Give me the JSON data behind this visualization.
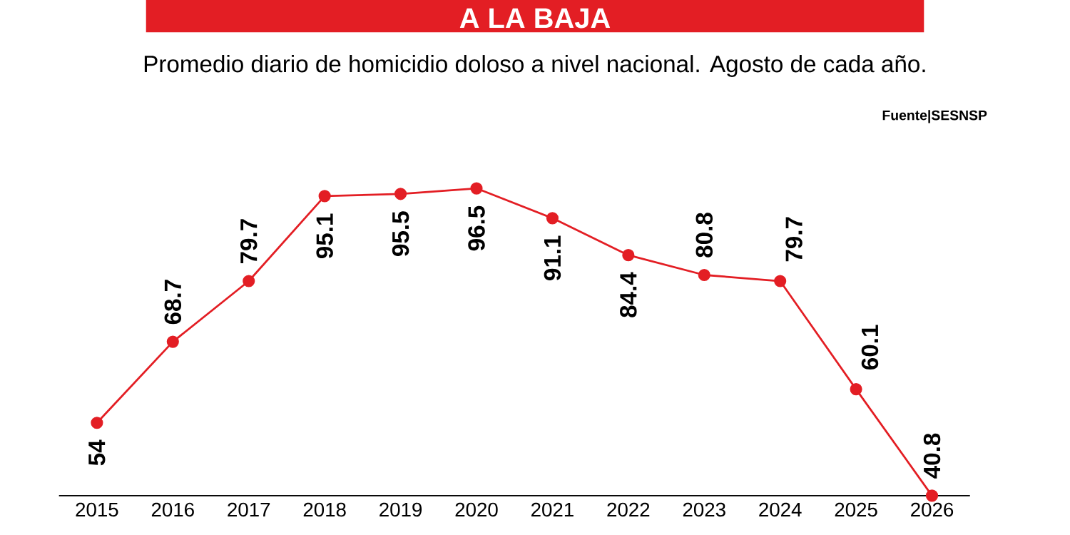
{
  "chart_data": {
    "type": "line",
    "title": "A LA BAJA",
    "subtitle": "Promedio diario de homicidio doloso a nivel nacional. Agosto de cada año.",
    "annotations": [
      "Fuente|SESNSP"
    ],
    "categories": [
      "2015",
      "2016",
      "2017",
      "2018",
      "2019",
      "2020",
      "2021",
      "2022",
      "2023",
      "2024",
      "2025",
      "2026"
    ],
    "values": [
      54,
      68.7,
      79.7,
      95.1,
      95.5,
      96.5,
      91.1,
      84.4,
      80.8,
      79.7,
      60.1,
      40.8
    ],
    "value_labels": [
      "54",
      "68.7",
      "79.7",
      "95.1",
      "95.5",
      "96.5",
      "91.1",
      "84.4",
      "80.8",
      "79.7",
      "60.1",
      "40.8"
    ],
    "color": "#e31e24",
    "marker": "circle"
  }
}
